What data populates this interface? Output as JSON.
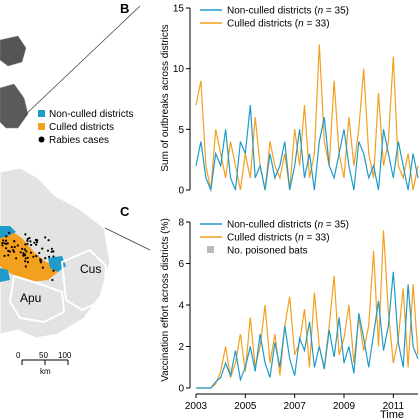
{
  "map": {
    "legend": [
      {
        "label": "Non-culled districts",
        "color": "#1f9bc9",
        "shape": "square"
      },
      {
        "label": "Culled districts",
        "color": "#f4a01f",
        "shape": "square"
      },
      {
        "label": "Rabies cases",
        "color": "#000000",
        "shape": "dot"
      }
    ],
    "region_labels": [
      "Apu",
      "Cus"
    ],
    "scalebar_ticks": [
      "0",
      "50",
      "100"
    ],
    "scalebar_unit": "km"
  },
  "chart_data": [
    {
      "panel": "B",
      "type": "line",
      "ylabel": "Sum of outbreaks across districts",
      "ylim": [
        0,
        15
      ],
      "yticks": [
        "0",
        "5",
        "10",
        "15"
      ],
      "xlim": [
        2003.0,
        2012.0
      ],
      "series": [
        {
          "name": "Non-culled districts",
          "n": "35",
          "color": "#1f9bc9",
          "x": [
            2003.0,
            2003.2,
            2003.4,
            2003.6,
            2003.8,
            2004.0,
            2004.2,
            2004.4,
            2004.6,
            2004.8,
            2005.0,
            2005.2,
            2005.4,
            2005.6,
            2005.8,
            2006.0,
            2006.2,
            2006.4,
            2006.6,
            2006.8,
            2007.0,
            2007.2,
            2007.4,
            2007.6,
            2007.8,
            2008.0,
            2008.2,
            2008.4,
            2008.6,
            2008.8,
            2009.0,
            2009.2,
            2009.4,
            2009.6,
            2009.8,
            2010.0,
            2010.2,
            2010.4,
            2010.6,
            2010.8,
            2011.0,
            2011.2,
            2011.4,
            2011.6,
            2011.8,
            2012.0
          ],
          "values": [
            2,
            4,
            1,
            0,
            3,
            2,
            5,
            1,
            0,
            4,
            3,
            7,
            1,
            2,
            0,
            3,
            1,
            2,
            4,
            0,
            2,
            5,
            1,
            3,
            0,
            4,
            6,
            2,
            1,
            3,
            5,
            2,
            0,
            4,
            3,
            1,
            2,
            0,
            5,
            3,
            1,
            4,
            2,
            0,
            3,
            1
          ]
        },
        {
          "name": "Culled districts",
          "n": "33",
          "color": "#f4a01f",
          "x": [
            2003.0,
            2003.2,
            2003.4,
            2003.6,
            2003.8,
            2004.0,
            2004.2,
            2004.4,
            2004.6,
            2004.8,
            2005.0,
            2005.2,
            2005.4,
            2005.6,
            2005.8,
            2006.0,
            2006.2,
            2006.4,
            2006.6,
            2006.8,
            2007.0,
            2007.2,
            2007.4,
            2007.6,
            2007.8,
            2008.0,
            2008.2,
            2008.4,
            2008.6,
            2008.8,
            2009.0,
            2009.2,
            2009.4,
            2009.6,
            2009.8,
            2010.0,
            2010.2,
            2010.4,
            2010.6,
            2010.8,
            2011.0,
            2011.2,
            2011.4,
            2011.6,
            2011.8,
            2012.0
          ],
          "values": [
            7,
            9,
            2,
            0,
            5,
            3,
            1,
            4,
            2,
            0,
            3,
            1,
            6,
            2,
            0,
            4,
            2,
            1,
            3,
            0,
            5,
            2,
            7,
            1,
            3,
            12,
            4,
            2,
            9,
            3,
            1,
            6,
            2,
            5,
            10,
            3,
            1,
            8,
            2,
            4,
            11,
            2,
            1,
            3,
            0,
            2
          ]
        }
      ]
    },
    {
      "panel": "C",
      "type": "line",
      "ylabel": "Vaccination effort across districts (%)",
      "xlabel": "Time",
      "ylim": [
        0,
        8
      ],
      "yticks": [
        "0",
        "2",
        "4",
        "6",
        "8"
      ],
      "xlim": [
        2003.0,
        2012.0
      ],
      "xticks": [
        "2003",
        "2005",
        "2007",
        "2009",
        "2011"
      ],
      "xtick_values": [
        2003,
        2005,
        2007,
        2009,
        2011
      ],
      "series": [
        {
          "name": "Non-culled districts",
          "n": "35",
          "color": "#1f9bc9",
          "x": [
            2003.0,
            2003.2,
            2003.4,
            2003.6,
            2003.8,
            2004.0,
            2004.2,
            2004.4,
            2004.6,
            2004.8,
            2005.0,
            2005.2,
            2005.4,
            2005.6,
            2005.8,
            2006.0,
            2006.2,
            2006.4,
            2006.6,
            2006.8,
            2007.0,
            2007.2,
            2007.4,
            2007.6,
            2007.8,
            2008.0,
            2008.2,
            2008.4,
            2008.6,
            2008.8,
            2009.0,
            2009.2,
            2009.4,
            2009.6,
            2009.8,
            2010.0,
            2010.2,
            2010.4,
            2010.6,
            2010.8,
            2011.0,
            2011.2,
            2011.4,
            2011.6,
            2011.8,
            2012.0
          ],
          "values": [
            0,
            0,
            0,
            0,
            0.3,
            0.5,
            1.2,
            0.6,
            1.8,
            0.4,
            1.0,
            2.0,
            0.8,
            2.6,
            1.2,
            0.5,
            2.2,
            1.0,
            3.0,
            1.4,
            0.6,
            2.4,
            1.8,
            3.2,
            1.0,
            2.0,
            0.9,
            2.8,
            1.5,
            3.4,
            1.2,
            2.0,
            0.7,
            3.6,
            2.4,
            1.0,
            2.6,
            4.2,
            1.8,
            3.0,
            5.6,
            2.2,
            1.0,
            5.0,
            2.0,
            1.4
          ]
        },
        {
          "name": "Culled districts",
          "n": "33",
          "color": "#f4a01f",
          "x": [
            2003.0,
            2003.2,
            2003.4,
            2003.6,
            2003.8,
            2004.0,
            2004.2,
            2004.4,
            2004.6,
            2004.8,
            2005.0,
            2005.2,
            2005.4,
            2005.6,
            2005.8,
            2006.0,
            2006.2,
            2006.4,
            2006.6,
            2006.8,
            2007.0,
            2007.2,
            2007.4,
            2007.6,
            2007.8,
            2008.0,
            2008.2,
            2008.4,
            2008.6,
            2008.8,
            2009.0,
            2009.2,
            2009.4,
            2009.6,
            2009.8,
            2010.0,
            2010.2,
            2010.4,
            2010.6,
            2010.8,
            2011.0,
            2011.2,
            2011.4,
            2011.6,
            2011.8,
            2012.0
          ],
          "values": [
            0,
            0,
            0,
            0,
            0.2,
            0.8,
            2.0,
            0.5,
            1.2,
            2.6,
            0.8,
            3.4,
            1.0,
            2.0,
            4.0,
            1.2,
            2.6,
            0.6,
            3.0,
            4.4,
            1.6,
            2.2,
            3.8,
            1.0,
            4.6,
            2.0,
            1.0,
            3.0,
            5.4,
            1.6,
            2.4,
            4.0,
            1.2,
            3.4,
            1.8,
            3.0,
            6.6,
            2.0,
            7.6,
            3.6,
            1.2,
            2.4,
            4.8,
            1.0,
            5.0,
            1.6
          ]
        }
      ],
      "legend_extra": {
        "label": "No. poisoned bats",
        "color": "#bbbbbb",
        "shape": "square"
      }
    }
  ]
}
